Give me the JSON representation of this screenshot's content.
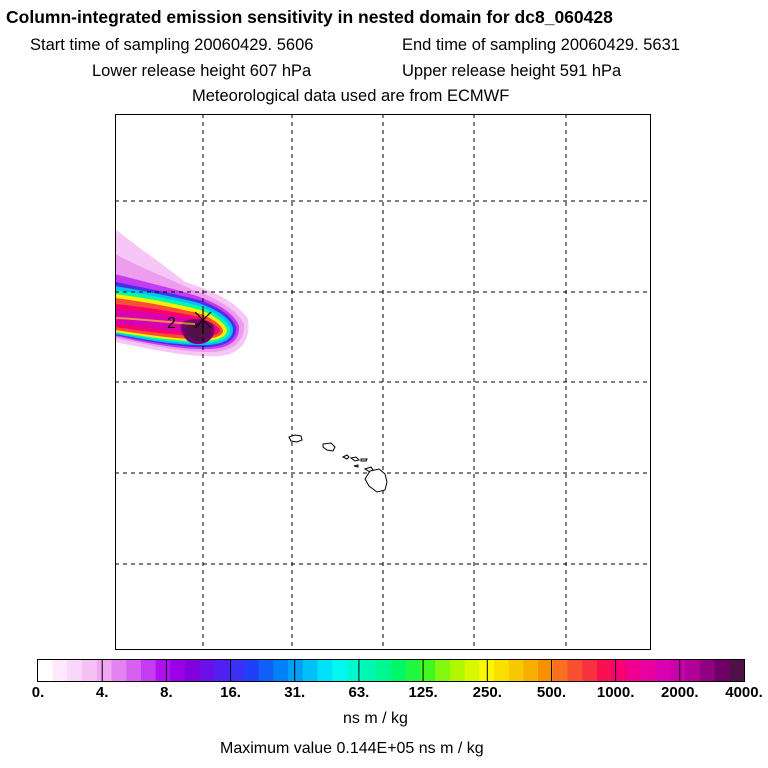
{
  "header": {
    "title": "Column-integrated emission sensitivity in nested domain for dc8_060428",
    "start_time": "Start time of sampling 20060429.  5606",
    "end_time": "End time of sampling 20060429.  5631",
    "lower_release": "Lower release height  607 hPa",
    "upper_release": "Upper release height  591 hPa",
    "met_data": "Meteorological data used are from ECMWF"
  },
  "map": {
    "marker_label": "2",
    "grid_lines": "dashed"
  },
  "colorbar": {
    "tick_labels": [
      "0.",
      "4.",
      "8.",
      "16.",
      "31.",
      "63.",
      "125.",
      "250.",
      "500.",
      "1000.",
      "2000.",
      "4000."
    ],
    "colors": [
      "#ffffff",
      "#fde8fd",
      "#fbd6fb",
      "#f6bff6",
      "#f0a6f0",
      "#e383f0",
      "#d860f0",
      "#c43bf0",
      "#b010f0",
      "#9a00e8",
      "#8000e0",
      "#6a10e8",
      "#5020f0",
      "#3c30f4",
      "#2040f8",
      "#1060f8",
      "#0080f8",
      "#00a0f8",
      "#00c0f8",
      "#00e0f8",
      "#00f8f0",
      "#00f8d0",
      "#00f8b0",
      "#00f890",
      "#00f868",
      "#20f840",
      "#40f820",
      "#80f810",
      "#b0f800",
      "#d8f800",
      "#f8f800",
      "#f8e000",
      "#f8c800",
      "#f8b000",
      "#f89000",
      "#f87020",
      "#f85030",
      "#f83040",
      "#f81050",
      "#f80070",
      "#f00090",
      "#e800a0",
      "#d800b0",
      "#c800a8",
      "#b00098",
      "#900080",
      "#700068",
      "#501048"
    ],
    "units": "ns m / kg"
  },
  "footer": {
    "max_value": "Maximum value  0.144E+05 ns m / kg"
  }
}
